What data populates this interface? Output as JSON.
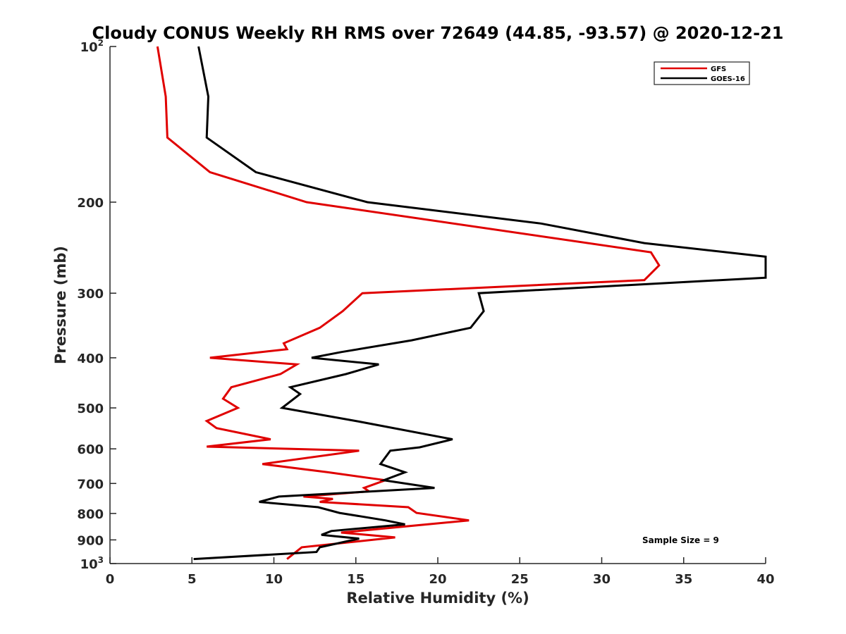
{
  "chart_data": {
    "type": "line",
    "title": "Cloudy CONUS Weekly RH RMS over 72649 (44.85, -93.57) @ 2020-12-21",
    "xlabel": "Relative Humidity (%)",
    "ylabel": "Pressure (mb)",
    "xlim": [
      0,
      40
    ],
    "ylim": [
      100,
      1000
    ],
    "y_scale": "log",
    "y_reversed": true,
    "grid": false,
    "legend_position": "top-right",
    "x_ticks": [
      "0",
      "5",
      "10",
      "15",
      "20",
      "25",
      "30",
      "35",
      "40"
    ],
    "y_ticks": [
      {
        "value": 100,
        "base": "10",
        "exp": "2"
      },
      {
        "value": 200,
        "label": "200"
      },
      {
        "value": 300,
        "label": "300"
      },
      {
        "value": 400,
        "label": "400"
      },
      {
        "value": 500,
        "label": "500"
      },
      {
        "value": 600,
        "label": "600"
      },
      {
        "value": 700,
        "label": "700"
      },
      {
        "value": 800,
        "label": "800"
      },
      {
        "value": 900,
        "label": "900"
      },
      {
        "value": 1000,
        "base": "10",
        "exp": "3"
      }
    ],
    "series": [
      {
        "name": "GFS",
        "color": "#e00000",
        "points": [
          [
            2.9,
            100
          ],
          [
            3.4,
            125
          ],
          [
            3.5,
            150
          ],
          [
            6.1,
            175
          ],
          [
            12.0,
            200
          ],
          [
            33.0,
            250
          ],
          [
            33.5,
            265
          ],
          [
            32.6,
            283
          ],
          [
            15.4,
            300
          ],
          [
            14.2,
            325
          ],
          [
            12.8,
            350
          ],
          [
            10.6,
            375
          ],
          [
            10.8,
            385
          ],
          [
            6.1,
            400
          ],
          [
            11.4,
            412
          ],
          [
            10.4,
            430
          ],
          [
            7.4,
            456
          ],
          [
            6.9,
            480
          ],
          [
            7.8,
            500
          ],
          [
            5.9,
            530
          ],
          [
            6.5,
            547
          ],
          [
            9.8,
            575
          ],
          [
            5.9,
            594
          ],
          [
            15.2,
            605
          ],
          [
            9.3,
            642
          ],
          [
            13.3,
            666
          ],
          [
            16.8,
            690
          ],
          [
            15.5,
            714
          ],
          [
            15.8,
            725
          ],
          [
            11.8,
            742
          ],
          [
            13.6,
            750
          ],
          [
            12.8,
            760
          ],
          [
            18.2,
            778
          ],
          [
            18.7,
            798
          ],
          [
            21.9,
            825
          ],
          [
            14.1,
            871
          ],
          [
            17.4,
            890
          ],
          [
            11.7,
            930
          ],
          [
            10.8,
            980
          ]
        ]
      },
      {
        "name": "GOES-16",
        "color": "#000000",
        "points": [
          [
            5.4,
            100
          ],
          [
            6.0,
            125
          ],
          [
            5.9,
            150
          ],
          [
            8.9,
            175
          ],
          [
            15.7,
            200
          ],
          [
            26.3,
            220
          ],
          [
            32.6,
            240
          ],
          [
            40.0,
            255
          ],
          [
            40.0,
            280
          ],
          [
            22.5,
            300
          ],
          [
            22.8,
            325
          ],
          [
            22.0,
            350
          ],
          [
            18.4,
            370
          ],
          [
            14.1,
            390
          ],
          [
            12.3,
            400
          ],
          [
            16.4,
            412
          ],
          [
            14.4,
            430
          ],
          [
            11.0,
            456
          ],
          [
            11.6,
            470
          ],
          [
            10.5,
            500
          ],
          [
            15.0,
            530
          ],
          [
            20.9,
            575
          ],
          [
            18.9,
            596
          ],
          [
            17.1,
            605
          ],
          [
            16.5,
            642
          ],
          [
            18.0,
            666
          ],
          [
            16.7,
            690
          ],
          [
            19.8,
            714
          ],
          [
            10.3,
            742
          ],
          [
            9.1,
            760
          ],
          [
            12.7,
            778
          ],
          [
            14.0,
            798
          ],
          [
            16.8,
            825
          ],
          [
            18.0,
            840
          ],
          [
            13.5,
            865
          ],
          [
            12.9,
            880
          ],
          [
            15.2,
            895
          ],
          [
            12.8,
            930
          ],
          [
            12.6,
            950
          ],
          [
            5.1,
            980
          ]
        ]
      }
    ],
    "annotations": [
      {
        "text": "Sample Size = 9"
      }
    ]
  }
}
